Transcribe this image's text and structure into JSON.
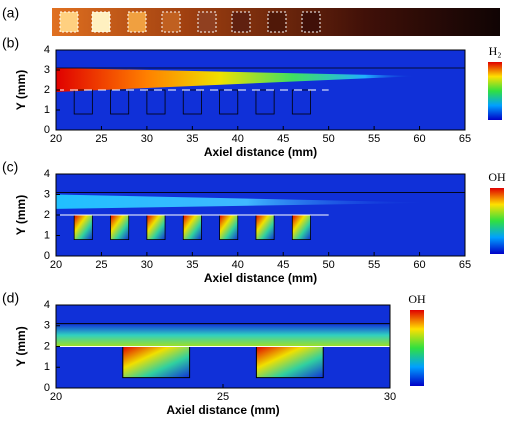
{
  "image_panel": {
    "label": "(a)"
  },
  "chart_data": [
    {
      "type": "contour",
      "panel_label": "(b)",
      "xlabel": "Axiel distance (mm)",
      "ylabel": "Y (mm)",
      "colorbar_label": "H₂",
      "xlim": [
        20,
        65
      ],
      "ylim": [
        0,
        4
      ],
      "xticks": [
        20,
        25,
        30,
        35,
        40,
        45,
        50,
        55,
        60,
        65
      ],
      "yticks": [
        0,
        1,
        2,
        3,
        4
      ]
    },
    {
      "type": "contour",
      "panel_label": "(c)",
      "xlabel": "Axiel distance (mm)",
      "ylabel": "Y (mm)",
      "colorbar_label": "OH",
      "xlim": [
        20,
        65
      ],
      "ylim": [
        0,
        4
      ],
      "xticks": [
        20,
        25,
        30,
        35,
        40,
        45,
        50,
        55,
        60,
        65
      ],
      "yticks": [
        0,
        1,
        2,
        3,
        4
      ]
    },
    {
      "type": "contour",
      "panel_label": "(d)",
      "xlabel": "Axiel distance (mm)",
      "ylabel": "Y (mm)",
      "colorbar_label": "OH",
      "xlim": [
        20,
        30
      ],
      "ylim": [
        0,
        4
      ],
      "xticks": [
        20,
        25,
        30
      ],
      "yticks": [
        0,
        1,
        2,
        3,
        4
      ]
    }
  ]
}
